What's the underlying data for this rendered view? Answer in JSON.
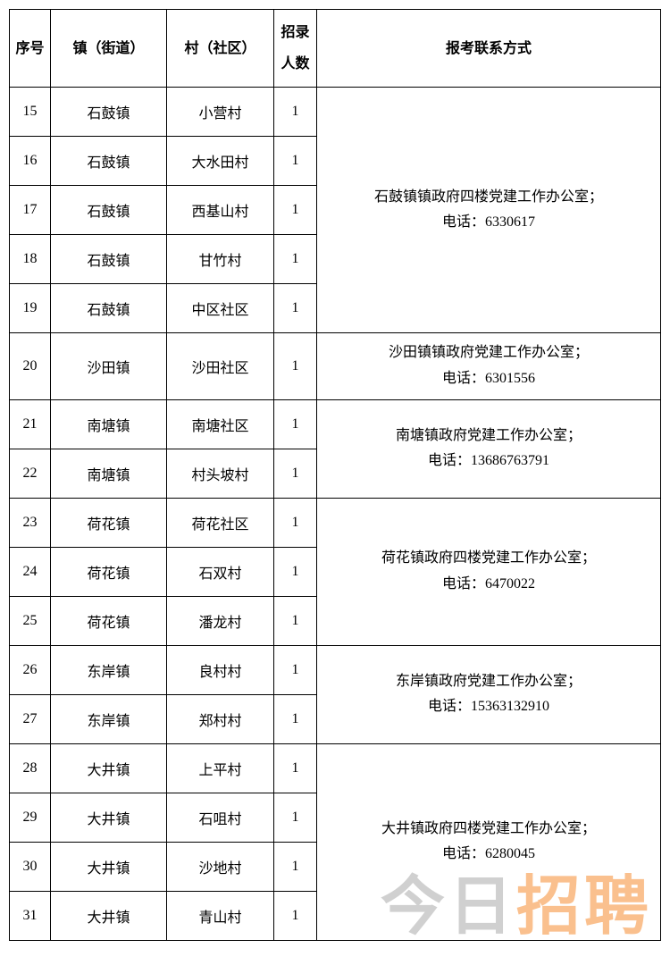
{
  "headers": {
    "seq": "序号",
    "town": "镇（街道）",
    "village": "村（社区）",
    "count": "招录人数",
    "contact": "报考联系方式"
  },
  "groups": [
    {
      "contact_line1": "石鼓镇镇政府四楼党建工作办公室；",
      "contact_line2": "电话：6330617",
      "rows": [
        {
          "seq": "15",
          "town": "石鼓镇",
          "village": "小营村",
          "count": "1"
        },
        {
          "seq": "16",
          "town": "石鼓镇",
          "village": "大水田村",
          "count": "1"
        },
        {
          "seq": "17",
          "town": "石鼓镇",
          "village": "西基山村",
          "count": "1"
        },
        {
          "seq": "18",
          "town": "石鼓镇",
          "village": "甘竹村",
          "count": "1"
        },
        {
          "seq": "19",
          "town": "石鼓镇",
          "village": "中区社区",
          "count": "1"
        }
      ]
    },
    {
      "contact_line1": "沙田镇镇政府党建工作办公室；",
      "contact_line2": "电话：6301556",
      "rows": [
        {
          "seq": "20",
          "town": "沙田镇",
          "village": "沙田社区",
          "count": "1"
        }
      ]
    },
    {
      "contact_line1": "南塘镇政府党建工作办公室；",
      "contact_line2": "电话：13686763791",
      "rows": [
        {
          "seq": "21",
          "town": "南塘镇",
          "village": "南塘社区",
          "count": "1"
        },
        {
          "seq": "22",
          "town": "南塘镇",
          "village": "村头坡村",
          "count": "1"
        }
      ]
    },
    {
      "contact_line1": "荷花镇政府四楼党建工作办公室；",
      "contact_line2": "电话：6470022",
      "rows": [
        {
          "seq": "23",
          "town": "荷花镇",
          "village": "荷花社区",
          "count": "1"
        },
        {
          "seq": "24",
          "town": "荷花镇",
          "village": "石双村",
          "count": "1"
        },
        {
          "seq": "25",
          "town": "荷花镇",
          "village": "潘龙村",
          "count": "1"
        }
      ]
    },
    {
      "contact_line1": "东岸镇政府党建工作办公室；",
      "contact_line2": "电话：15363132910",
      "rows": [
        {
          "seq": "26",
          "town": "东岸镇",
          "village": "良村村",
          "count": "1"
        },
        {
          "seq": "27",
          "town": "东岸镇",
          "village": "郑村村",
          "count": "1"
        }
      ]
    },
    {
      "contact_line1": "大井镇政府四楼党建工作办公室；",
      "contact_line2": "电话：6280045",
      "rows": [
        {
          "seq": "28",
          "town": "大井镇",
          "village": "上平村",
          "count": "1"
        },
        {
          "seq": "29",
          "town": "大井镇",
          "village": "石咀村",
          "count": "1"
        },
        {
          "seq": "30",
          "town": "大井镇",
          "village": "沙地村",
          "count": "1"
        },
        {
          "seq": "31",
          "town": "大井镇",
          "village": "青山村",
          "count": "1"
        }
      ]
    }
  ],
  "watermark": {
    "part1": "今日",
    "part2": "招聘"
  }
}
